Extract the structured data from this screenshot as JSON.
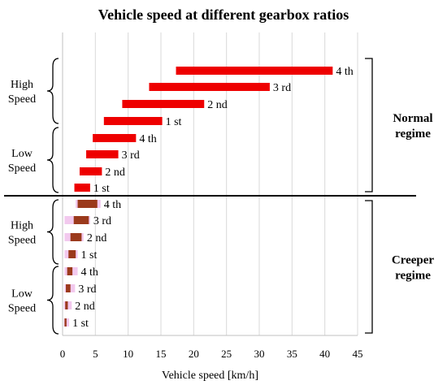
{
  "chart_data": {
    "type": "bar",
    "orientation": "horizontal-floating",
    "title": "Vehicle speed at different gearbox ratios",
    "xlabel": "Vehicle speed [km/h]",
    "xlim": [
      0,
      45
    ],
    "x_ticks": [
      "0",
      "5",
      "10",
      "15",
      "20",
      "25",
      "30",
      "35",
      "40",
      "45"
    ],
    "grid": true,
    "legend": "none",
    "colors": {
      "normal": "#ee0000",
      "creeper": "#9b3a1c",
      "creeper_faint": "#f2c9ee",
      "grid": "#d9d9d9",
      "axis": "#000000"
    },
    "bars": [
      {
        "regime": "Normal regime",
        "range": "High Speed",
        "gear": "4 th",
        "start": 17.3,
        "end": 41.2
      },
      {
        "regime": "Normal regime",
        "range": "High Speed",
        "gear": "3 rd",
        "start": 13.2,
        "end": 31.6
      },
      {
        "regime": "Normal regime",
        "range": "High Speed",
        "gear": "2 nd",
        "start": 9.1,
        "end": 21.6
      },
      {
        "regime": "Normal regime",
        "range": "High Speed",
        "gear": "1 st",
        "start": 6.3,
        "end": 15.2
      },
      {
        "regime": "Normal regime",
        "range": "Low Speed",
        "gear": "4 th",
        "start": 4.6,
        "end": 11.2
      },
      {
        "regime": "Normal regime",
        "range": "Low Speed",
        "gear": "3 rd",
        "start": 3.6,
        "end": 8.5
      },
      {
        "regime": "Normal regime",
        "range": "Low Speed",
        "gear": "2 nd",
        "start": 2.6,
        "end": 6.0
      },
      {
        "regime": "Normal regime",
        "range": "Low Speed",
        "gear": "1 st",
        "start": 1.8,
        "end": 4.2
      },
      {
        "regime": "Creeper regime",
        "range": "High Speed",
        "gear": "4 th",
        "start": 2.3,
        "end": 5.3,
        "faint_start": 2.0,
        "faint_end": 5.8
      },
      {
        "regime": "Creeper regime",
        "range": "High Speed",
        "gear": "3 rd",
        "start": 1.7,
        "end": 4.0,
        "faint_start": 0.3,
        "faint_end": 4.2
      },
      {
        "regime": "Creeper regime",
        "range": "High Speed",
        "gear": "2 nd",
        "start": 1.2,
        "end": 2.9,
        "faint_start": 0.3,
        "faint_end": 3.2
      },
      {
        "regime": "Creeper regime",
        "range": "High Speed",
        "gear": "1 st",
        "start": 0.9,
        "end": 2.0,
        "faint_start": 0.3,
        "faint_end": 2.3
      },
      {
        "regime": "Creeper regime",
        "range": "Low Speed",
        "gear": "4 th",
        "start": 0.7,
        "end": 1.5,
        "faint_start": 0.3,
        "faint_end": 2.3
      },
      {
        "regime": "Creeper regime",
        "range": "Low Speed",
        "gear": "3 rd",
        "start": 0.5,
        "end": 1.2,
        "faint_start": 0.3,
        "faint_end": 1.9
      },
      {
        "regime": "Creeper regime",
        "range": "Low Speed",
        "gear": "2 nd",
        "start": 0.4,
        "end": 0.8,
        "faint_start": 0.2,
        "faint_end": 1.4
      },
      {
        "regime": "Creeper regime",
        "range": "Low Speed",
        "gear": "1 st",
        "start": 0.3,
        "end": 0.6,
        "faint_start": 0.2,
        "faint_end": 1.0
      }
    ],
    "groups": [
      {
        "label": "High\nSpeed"
      },
      {
        "label": "Low\nSpeed"
      },
      {
        "label": "High\nSpeed"
      },
      {
        "label": "Low\nSpeed"
      }
    ],
    "regimes": [
      {
        "label": "Normal\nregime"
      },
      {
        "label": "Creeper\nregime"
      }
    ]
  }
}
